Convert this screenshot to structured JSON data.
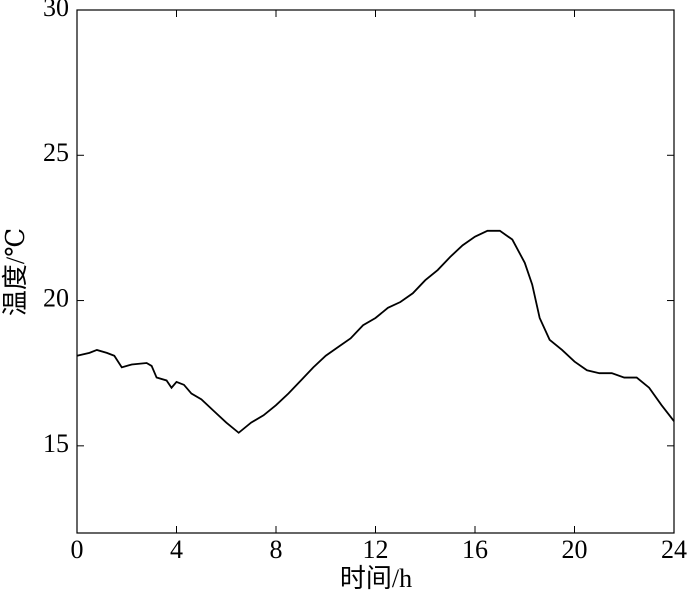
{
  "chart_data": {
    "type": "line",
    "x_label": "时间/h",
    "y_label": "温度/℃",
    "x": [
      0,
      0.5,
      0.8,
      1.2,
      1.5,
      1.8,
      2.2,
      2.8,
      3.0,
      3.2,
      3.6,
      3.8,
      4.0,
      4.3,
      4.6,
      5.0,
      5.5,
      6.0,
      6.5,
      7.0,
      7.5,
      8.0,
      8.5,
      9.0,
      9.5,
      10,
      10.5,
      11,
      11.5,
      12,
      12.5,
      13,
      13.5,
      14,
      14.5,
      15,
      15.5,
      16,
      16.5,
      17,
      17.5,
      18,
      18.3,
      18.6,
      19,
      19.5,
      20,
      20.5,
      21,
      21.5,
      22,
      22.5,
      23,
      23.5,
      24
    ],
    "series": [
      {
        "name": "温度",
        "color": "#000000",
        "values": [
          18.1,
          18.2,
          18.3,
          18.2,
          18.1,
          17.7,
          17.8,
          17.85,
          17.75,
          17.35,
          17.25,
          17.0,
          17.2,
          17.1,
          16.8,
          16.6,
          16.2,
          15.8,
          15.45,
          15.8,
          16.05,
          16.4,
          16.8,
          17.25,
          17.7,
          18.1,
          18.4,
          18.7,
          19.15,
          19.4,
          19.75,
          19.95,
          20.25,
          20.7,
          21.05,
          21.5,
          21.9,
          22.2,
          22.4,
          22.4,
          22.1,
          21.3,
          20.55,
          19.4,
          18.65,
          18.3,
          17.9,
          17.6,
          17.5,
          17.5,
          17.35,
          17.35,
          17.0,
          16.4,
          15.85
        ]
      }
    ],
    "xlim": [
      0,
      24
    ],
    "xticks": [
      0,
      4,
      8,
      12,
      16,
      20,
      24
    ],
    "ylim": [
      12,
      30
    ],
    "yticks": [
      15,
      20,
      25,
      30
    ]
  }
}
